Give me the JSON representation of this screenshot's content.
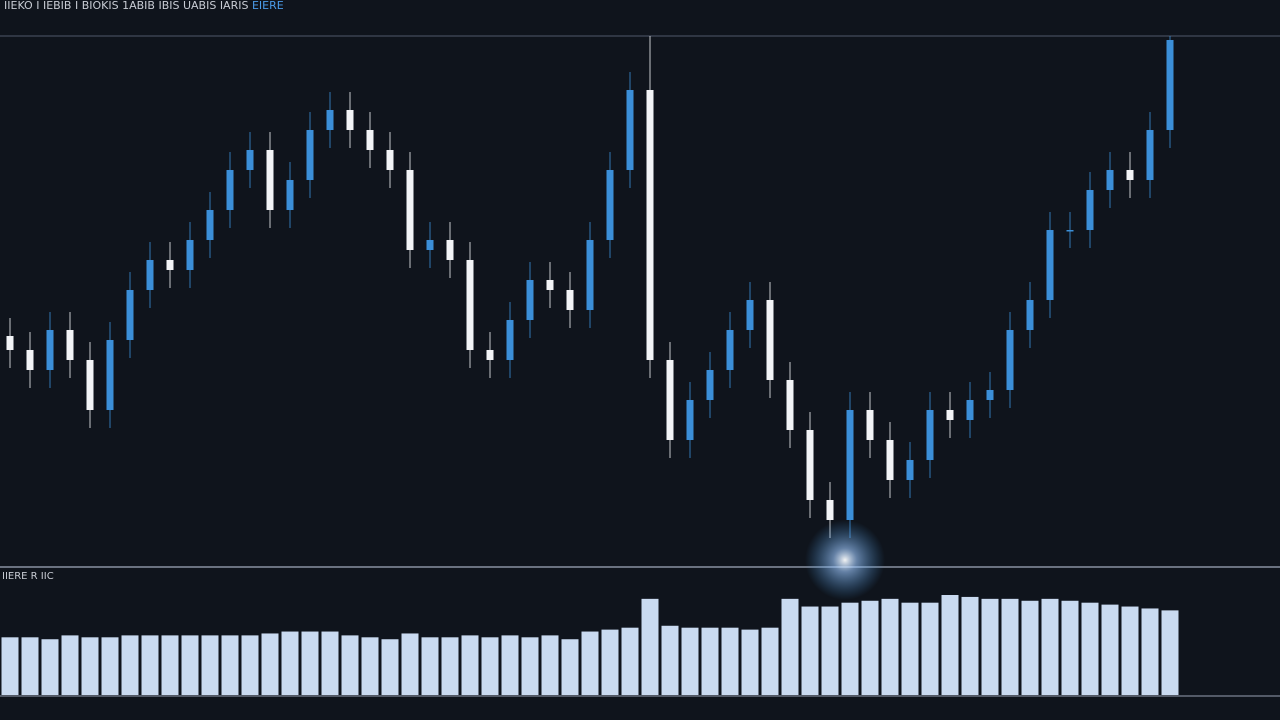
{
  "chart_data": {
    "type": "candlestick",
    "title": "IIEKO I IEBIB I BIOKIS 1ABIB IBIS UABIS IARIS",
    "title_tail": "EIERE",
    "open": [
      230,
      216,
      196,
      236,
      206,
      156,
      226,
      276,
      306,
      296,
      326,
      356,
      396,
      416,
      356,
      386,
      436,
      456,
      436,
      416,
      396,
      316,
      326,
      306,
      216,
      206,
      246,
      286,
      276,
      256,
      326,
      396,
      476,
      206,
      126,
      166,
      196,
      236,
      266,
      186,
      136,
      66,
      46,
      156,
      126,
      86,
      106,
      156,
      146,
      166,
      176,
      236,
      266,
      336,
      336,
      376,
      396,
      386,
      436
    ],
    "high": [
      248,
      234,
      254,
      254,
      224,
      244,
      294,
      324,
      324,
      344,
      374,
      414,
      434,
      434,
      404,
      454,
      474,
      474,
      454,
      434,
      414,
      344,
      344,
      324,
      234,
      264,
      304,
      304,
      294,
      344,
      414,
      494,
      530,
      224,
      184,
      214,
      254,
      284,
      284,
      204,
      154,
      84,
      174,
      174,
      144,
      124,
      174,
      174,
      184,
      194,
      254,
      284,
      354,
      354,
      394,
      414,
      414,
      454,
      530
    ],
    "low": [
      198,
      178,
      178,
      188,
      138,
      138,
      208,
      258,
      278,
      278,
      308,
      338,
      378,
      338,
      338,
      368,
      418,
      418,
      398,
      378,
      298,
      298,
      288,
      198,
      188,
      188,
      228,
      258,
      238,
      238,
      308,
      378,
      188,
      108,
      108,
      148,
      178,
      218,
      168,
      118,
      48,
      28,
      28,
      108,
      68,
      68,
      88,
      128,
      128,
      148,
      158,
      218,
      248,
      318,
      318,
      358,
      368,
      368,
      418
    ],
    "close": [
      216,
      196,
      236,
      206,
      156,
      226,
      276,
      306,
      296,
      326,
      356,
      396,
      416,
      356,
      386,
      436,
      456,
      436,
      416,
      396,
      316,
      326,
      306,
      216,
      206,
      246,
      286,
      276,
      256,
      326,
      396,
      476,
      206,
      126,
      166,
      196,
      236,
      266,
      186,
      136,
      66,
      46,
      156,
      126,
      86,
      106,
      156,
      146,
      166,
      176,
      236,
      266,
      336,
      336,
      376,
      396,
      386,
      436,
      526
    ],
    "ylim": [
      0,
      530
    ],
    "up_color": "#3b8fd8",
    "down_color": "#f2f4f7",
    "volume": {
      "label": "IIERE R IIC",
      "values": [
        60,
        60,
        58,
        62,
        60,
        60,
        62,
        62,
        62,
        62,
        62,
        62,
        62,
        64,
        66,
        66,
        66,
        62,
        60,
        58,
        64,
        60,
        60,
        62,
        60,
        62,
        60,
        62,
        58,
        66,
        68,
        70,
        100,
        72,
        70,
        70,
        70,
        68,
        70,
        100,
        92,
        92,
        96,
        98,
        100,
        96,
        96,
        104,
        102,
        100,
        100,
        98,
        100,
        98,
        96,
        94,
        92,
        90,
        88
      ],
      "ylim": [
        0,
        130
      ],
      "color": "#c9daf0"
    }
  }
}
